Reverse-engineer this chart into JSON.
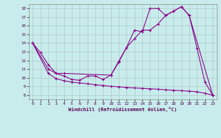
{
  "xlabel": "Windchill (Refroidissement éolien,°C)",
  "background_color": "#c8ecec",
  "grid_color": "#b0c8c8",
  "line_color": "#880088",
  "xlim": [
    -0.5,
    23.5
  ],
  "ylim": [
    7.5,
    18.5
  ],
  "xticks": [
    0,
    1,
    2,
    3,
    4,
    5,
    6,
    7,
    8,
    9,
    10,
    11,
    12,
    13,
    14,
    15,
    16,
    17,
    18,
    19,
    20,
    21,
    22,
    23
  ],
  "yticks": [
    8,
    9,
    10,
    11,
    12,
    13,
    14,
    15,
    16,
    17,
    18
  ],
  "line1_x": [
    0,
    1,
    2,
    3,
    4,
    5,
    6,
    7,
    8,
    9,
    10,
    11,
    12,
    13,
    14,
    15,
    16,
    17,
    18,
    19,
    20,
    21,
    22,
    23
  ],
  "line1_y": [
    14.0,
    12.9,
    11.5,
    10.5,
    10.2,
    9.8,
    9.7,
    10.2,
    10.2,
    9.8,
    10.3,
    11.8,
    13.5,
    15.5,
    15.3,
    18.0,
    18.0,
    17.2,
    17.7,
    18.2,
    17.2,
    13.4,
    9.5,
    8.0
  ],
  "line2_x": [
    0,
    2,
    3,
    4,
    5,
    6,
    7,
    8,
    9,
    10,
    11,
    12,
    13,
    14,
    15,
    16,
    17,
    18,
    19,
    20,
    21,
    22,
    23
  ],
  "line2_y": [
    14.0,
    10.5,
    9.9,
    9.65,
    9.5,
    9.4,
    9.3,
    9.2,
    9.1,
    9.0,
    8.95,
    8.88,
    8.82,
    8.77,
    8.72,
    8.67,
    8.6,
    8.55,
    8.5,
    8.45,
    8.38,
    8.2,
    8.0
  ],
  "line3_x": [
    0,
    2,
    3,
    4,
    10,
    11,
    12,
    13,
    14,
    15,
    16,
    17,
    18,
    19,
    20,
    23
  ],
  "line3_y": [
    14.0,
    11.0,
    10.5,
    10.5,
    10.3,
    11.9,
    13.5,
    14.5,
    15.5,
    15.5,
    16.2,
    17.2,
    17.7,
    18.2,
    17.2,
    8.0
  ]
}
